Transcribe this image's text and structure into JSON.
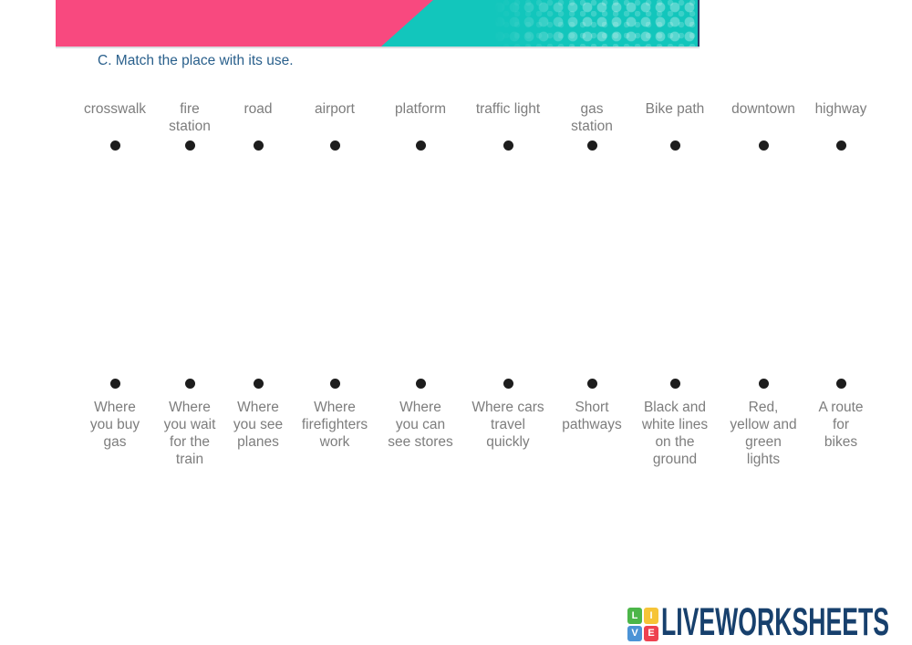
{
  "banner": {
    "pink": "#F8497F",
    "teal": "#12C6BC",
    "edge": "#2C3A6B"
  },
  "title": {
    "text": "C. Match the place with its use.",
    "color": "#2A608C"
  },
  "exercise": {
    "places": [
      "crosswalk",
      "fire\nstation",
      "road",
      "airport",
      "platform",
      "traffic light",
      "gas\nstation",
      "Bike path",
      "downtown",
      "highway"
    ],
    "uses": [
      "Where\nyou buy\ngas",
      "Where\nyou wait\nfor the\ntrain",
      "Where\nyou see\nplanes",
      "Where\nfirefighters\nwork",
      "Where\nyou can\nsee stores",
      "Where cars\ntravel\nquickly",
      "Short\npathways",
      "Black and\nwhite lines\non the\nground",
      "Red,\nyellow and\ngreen\nlights",
      "A route\nfor\nbikes"
    ],
    "word_color": "#7D7D7D",
    "dot_color": "#1D1D1D"
  },
  "footer": {
    "logo_tiles": [
      {
        "letter": "L",
        "color": "#4CB649"
      },
      {
        "letter": "I",
        "color": "#F6C437"
      },
      {
        "letter": "V",
        "color": "#4B93D6"
      },
      {
        "letter": "E",
        "color": "#EE4150"
      }
    ],
    "logo_text": "LIVEWORKSHEETS",
    "logo_text_color": "#17406D"
  }
}
